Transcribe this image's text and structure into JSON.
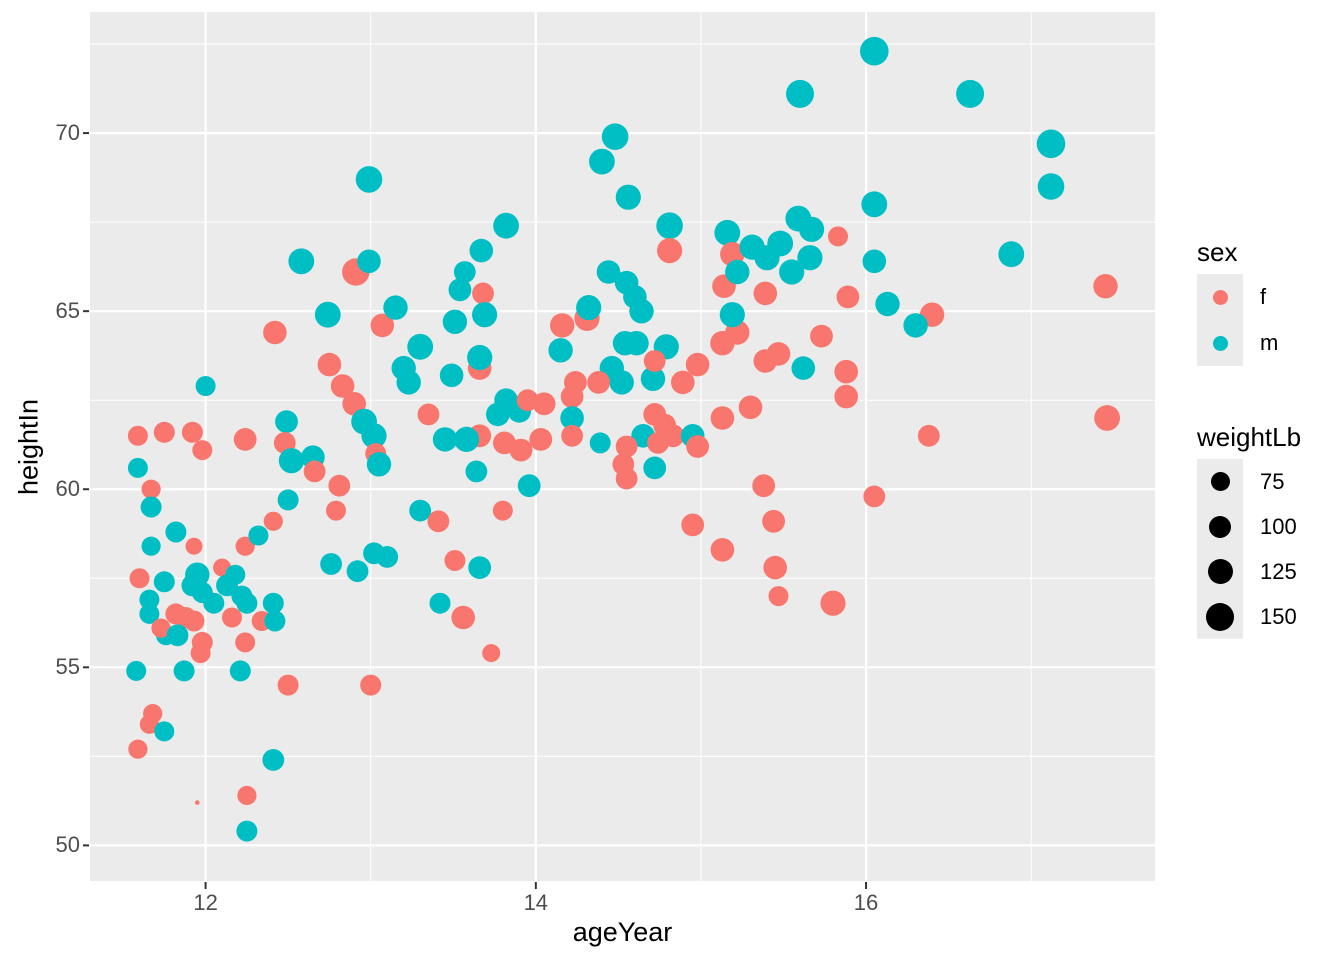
{
  "chart_data": {
    "type": "scatter",
    "title": "",
    "xlabel": "ageYear",
    "ylabel": "heightIn",
    "x_domain": [
      11.3,
      17.75
    ],
    "y_domain": [
      49.0,
      73.4
    ],
    "x_ticks": [
      "12",
      "14",
      "16"
    ],
    "x_tick_values": [
      12,
      14,
      16
    ],
    "y_ticks": [
      "50",
      "55",
      "60",
      "65",
      "70"
    ],
    "y_tick_values": [
      50,
      55,
      60,
      65,
      70
    ],
    "x_minor_values": [
      13,
      15,
      17
    ],
    "y_minor_values": [
      52.5,
      57.5,
      62.5,
      67.5,
      72.5
    ],
    "grid": true,
    "panel_bg": "#EBEBEB",
    "grid_color": "#FFFFFF",
    "tick_mark_color": "#333333",
    "tick_label_color": "#4D4D4D",
    "legend_position": "right",
    "color_legend": {
      "title": "sex",
      "entries": [
        {
          "label": "f",
          "color": "#F8766D"
        },
        {
          "label": "m",
          "color": "#00BFC4"
        }
      ],
      "key_dot_diameter": 15
    },
    "size_legend": {
      "title": "weightLb",
      "labels": [
        "75",
        "100",
        "125",
        "150"
      ],
      "values": [
        75,
        100,
        125,
        150
      ],
      "radii": [
        9.5,
        11,
        12.5,
        14
      ],
      "dot_color": "#000000"
    },
    "points_format": [
      "ageYear",
      "heightIn",
      "sex",
      "weightLb"
    ],
    "points": [
      [
        12.99,
        68.7,
        "m",
        140
      ],
      [
        12.58,
        66.4,
        "m",
        135
      ],
      [
        12.91,
        66.1,
        "f",
        145
      ],
      [
        12.99,
        66.4,
        "m",
        120
      ],
      [
        12.74,
        64.9,
        "m",
        135
      ],
      [
        13.07,
        64.6,
        "f",
        120
      ],
      [
        13.15,
        65.1,
        "m",
        125
      ],
      [
        15.6,
        71.1,
        "m",
        150
      ],
      [
        14.48,
        69.9,
        "m",
        140
      ],
      [
        14.4,
        69.2,
        "m",
        135
      ],
      [
        14.56,
        68.2,
        "m",
        130
      ],
      [
        14.81,
        67.4,
        "m",
        140
      ],
      [
        14.81,
        66.7,
        "f",
        130
      ],
      [
        13.82,
        67.4,
        "m",
        135
      ],
      [
        13.67,
        66.7,
        "m",
        120
      ],
      [
        13.57,
        66.1,
        "m",
        110
      ],
      [
        13.54,
        65.6,
        "m",
        115
      ],
      [
        13.68,
        65.5,
        "f",
        110
      ],
      [
        14.44,
        66.1,
        "m",
        120
      ],
      [
        14.55,
        65.8,
        "m",
        120
      ],
      [
        14.6,
        65.4,
        "m",
        120
      ],
      [
        14.64,
        65.0,
        "m",
        125
      ],
      [
        15.16,
        67.2,
        "m",
        135
      ],
      [
        15.19,
        66.6,
        "f",
        125
      ],
      [
        15.31,
        66.8,
        "m",
        130
      ],
      [
        15.4,
        66.5,
        "m",
        130
      ],
      [
        15.48,
        66.9,
        "m",
        135
      ],
      [
        15.55,
        66.1,
        "m",
        130
      ],
      [
        15.14,
        65.7,
        "f",
        120
      ],
      [
        15.22,
        66.1,
        "m",
        125
      ],
      [
        15.39,
        65.5,
        "f",
        120
      ],
      [
        15.59,
        67.6,
        "m",
        135
      ],
      [
        15.67,
        67.3,
        "m",
        130
      ],
      [
        15.66,
        66.5,
        "m",
        130
      ],
      [
        16.05,
        72.3,
        "m",
        155
      ],
      [
        16.63,
        71.1,
        "m",
        150
      ],
      [
        17.12,
        69.7,
        "m",
        155
      ],
      [
        17.12,
        68.5,
        "m",
        140
      ],
      [
        16.05,
        68.0,
        "m",
        135
      ],
      [
        15.83,
        67.1,
        "f",
        100
      ],
      [
        16.05,
        66.4,
        "m",
        120
      ],
      [
        16.88,
        66.6,
        "m",
        135
      ],
      [
        17.45,
        65.7,
        "f",
        125
      ],
      [
        15.89,
        65.4,
        "f",
        115
      ],
      [
        16.13,
        65.2,
        "m",
        125
      ],
      [
        16.4,
        64.9,
        "f",
        125
      ],
      [
        16.3,
        64.6,
        "m",
        125
      ],
      [
        15.73,
        64.3,
        "f",
        115
      ],
      [
        15.62,
        63.4,
        "m",
        120
      ],
      [
        15.88,
        63.3,
        "f",
        120
      ],
      [
        15.88,
        62.6,
        "f",
        120
      ],
      [
        17.46,
        62.0,
        "f",
        135
      ],
      [
        16.38,
        61.5,
        "f",
        110
      ],
      [
        16.05,
        59.8,
        "f",
        110
      ],
      [
        15.8,
        56.8,
        "f",
        130
      ],
      [
        12.42,
        64.4,
        "f",
        120
      ],
      [
        13.3,
        64.0,
        "m",
        135
      ],
      [
        13.2,
        63.4,
        "m",
        125
      ],
      [
        13.23,
        63.0,
        "m",
        125
      ],
      [
        12.0,
        62.9,
        "m",
        100
      ],
      [
        12.75,
        63.5,
        "f",
        120
      ],
      [
        12.83,
        62.9,
        "f",
        120
      ],
      [
        12.9,
        62.4,
        "f",
        120
      ],
      [
        12.49,
        61.9,
        "m",
        115
      ],
      [
        11.59,
        61.5,
        "f",
        100
      ],
      [
        11.75,
        61.6,
        "f",
        105
      ],
      [
        11.92,
        61.6,
        "f",
        105
      ],
      [
        11.98,
        61.1,
        "f",
        100
      ],
      [
        12.24,
        61.4,
        "f",
        115
      ],
      [
        12.48,
        61.3,
        "f",
        110
      ],
      [
        12.52,
        60.8,
        "m",
        130
      ],
      [
        12.65,
        60.9,
        "m",
        120
      ],
      [
        12.66,
        60.5,
        "f",
        110
      ],
      [
        12.81,
        60.1,
        "f",
        110
      ],
      [
        12.96,
        61.9,
        "m",
        135
      ],
      [
        13.02,
        61.5,
        "m",
        130
      ],
      [
        13.35,
        62.1,
        "f",
        110
      ],
      [
        13.03,
        61.0,
        "f",
        105
      ],
      [
        13.05,
        60.7,
        "m",
        125
      ],
      [
        11.59,
        60.6,
        "m",
        100
      ],
      [
        11.67,
        60.0,
        "f",
        95
      ],
      [
        11.67,
        59.5,
        "m",
        105
      ],
      [
        11.82,
        58.8,
        "m",
        105
      ],
      [
        11.67,
        58.4,
        "m",
        95
      ],
      [
        11.95,
        57.6,
        "m",
        125
      ],
      [
        11.93,
        58.4,
        "f",
        85
      ],
      [
        12.1,
        57.8,
        "f",
        90
      ],
      [
        12.18,
        57.6,
        "m",
        100
      ],
      [
        12.24,
        58.4,
        "f",
        95
      ],
      [
        12.32,
        58.7,
        "m",
        100
      ],
      [
        12.41,
        59.1,
        "f",
        95
      ],
      [
        12.79,
        59.4,
        "f",
        100
      ],
      [
        12.5,
        59.7,
        "m",
        105
      ],
      [
        11.6,
        57.5,
        "f",
        100
      ],
      [
        11.75,
        57.4,
        "m",
        105
      ],
      [
        11.92,
        57.3,
        "m",
        110
      ],
      [
        12.13,
        57.3,
        "m",
        110
      ],
      [
        12.76,
        57.9,
        "m",
        110
      ],
      [
        12.92,
        57.7,
        "m",
        110
      ],
      [
        13.02,
        58.2,
        "m",
        110
      ],
      [
        13.1,
        58.1,
        "m",
        110
      ],
      [
        13.3,
        59.4,
        "m",
        110
      ],
      [
        13.41,
        59.1,
        "f",
        110
      ],
      [
        13.69,
        64.9,
        "m",
        130
      ],
      [
        13.51,
        64.7,
        "m",
        125
      ],
      [
        13.66,
        63.4,
        "f",
        120
      ],
      [
        13.66,
        63.7,
        "m",
        130
      ],
      [
        13.49,
        63.2,
        "m",
        120
      ],
      [
        14.16,
        64.6,
        "f",
        125
      ],
      [
        14.31,
        64.8,
        "f",
        130
      ],
      [
        14.32,
        65.1,
        "m",
        130
      ],
      [
        14.15,
        63.9,
        "m",
        125
      ],
      [
        14.54,
        64.1,
        "m",
        125
      ],
      [
        14.61,
        64.1,
        "m",
        125
      ],
      [
        14.46,
        63.4,
        "m",
        125
      ],
      [
        14.52,
        63.0,
        "m",
        125
      ],
      [
        14.79,
        64.0,
        "m",
        130
      ],
      [
        14.71,
        63.1,
        "m",
        125
      ],
      [
        14.38,
        63.0,
        "f",
        115
      ],
      [
        14.24,
        63.0,
        "f",
        115
      ],
      [
        14.22,
        62.6,
        "f",
        115
      ],
      [
        14.72,
        63.6,
        "f",
        110
      ],
      [
        14.89,
        63.0,
        "f",
        120
      ],
      [
        14.98,
        63.5,
        "f",
        120
      ],
      [
        15.13,
        64.1,
        "f",
        125
      ],
      [
        15.22,
        64.4,
        "f",
        125
      ],
      [
        15.19,
        64.9,
        "m",
        130
      ],
      [
        15.39,
        63.6,
        "f",
        120
      ],
      [
        15.47,
        63.8,
        "f",
        120
      ],
      [
        13.82,
        62.5,
        "m",
        120
      ],
      [
        13.77,
        62.1,
        "m",
        120
      ],
      [
        13.9,
        62.2,
        "m",
        120
      ],
      [
        13.95,
        62.5,
        "f",
        110
      ],
      [
        14.05,
        62.4,
        "f",
        115
      ],
      [
        14.22,
        62.0,
        "m",
        120
      ],
      [
        14.22,
        61.5,
        "f",
        110
      ],
      [
        13.66,
        61.5,
        "f",
        115
      ],
      [
        13.81,
        61.3,
        "f",
        115
      ],
      [
        13.91,
        61.1,
        "f",
        115
      ],
      [
        14.03,
        61.4,
        "f",
        115
      ],
      [
        13.58,
        61.4,
        "m",
        130
      ],
      [
        13.45,
        61.4,
        "m",
        125
      ],
      [
        14.39,
        61.3,
        "m",
        105
      ],
      [
        14.65,
        61.5,
        "m",
        120
      ],
      [
        14.72,
        62.1,
        "f",
        115
      ],
      [
        14.78,
        61.8,
        "f",
        115
      ],
      [
        14.83,
        61.5,
        "f",
        115
      ],
      [
        14.74,
        61.3,
        "f",
        110
      ],
      [
        14.55,
        61.2,
        "f",
        110
      ],
      [
        14.53,
        60.7,
        "f",
        110
      ],
      [
        14.55,
        60.3,
        "f",
        110
      ],
      [
        14.72,
        60.6,
        "m",
        115
      ],
      [
        14.95,
        61.5,
        "m",
        120
      ],
      [
        14.98,
        61.2,
        "f",
        115
      ],
      [
        15.13,
        62.0,
        "f",
        120
      ],
      [
        15.3,
        62.3,
        "f",
        120
      ],
      [
        15.38,
        60.1,
        "f",
        115
      ],
      [
        14.95,
        59.0,
        "f",
        115
      ],
      [
        15.13,
        58.3,
        "f",
        120
      ],
      [
        15.44,
        59.1,
        "f",
        115
      ],
      [
        15.45,
        57.8,
        "f",
        120
      ],
      [
        13.96,
        60.1,
        "m",
        115
      ],
      [
        13.64,
        60.5,
        "m",
        110
      ],
      [
        13.8,
        59.4,
        "f",
        100
      ],
      [
        13.51,
        58.0,
        "f",
        105
      ],
      [
        13.66,
        57.8,
        "m",
        115
      ],
      [
        11.66,
        56.9,
        "m",
        100
      ],
      [
        11.66,
        56.5,
        "m",
        100
      ],
      [
        11.82,
        56.5,
        "f",
        105
      ],
      [
        11.88,
        56.4,
        "f",
        105
      ],
      [
        11.93,
        56.3,
        "f",
        105
      ],
      [
        11.76,
        55.9,
        "m",
        100
      ],
      [
        11.73,
        56.1,
        "f",
        95
      ],
      [
        11.83,
        55.9,
        "m",
        110
      ],
      [
        11.98,
        55.7,
        "f",
        105
      ],
      [
        11.97,
        55.4,
        "f",
        100
      ],
      [
        12.05,
        56.8,
        "m",
        105
      ],
      [
        11.98,
        57.1,
        "m",
        105
      ],
      [
        12.22,
        57.0,
        "m",
        105
      ],
      [
        12.25,
        56.8,
        "m",
        105
      ],
      [
        12.16,
        56.4,
        "f",
        100
      ],
      [
        12.34,
        56.3,
        "f",
        100
      ],
      [
        12.41,
        56.8,
        "m",
        105
      ],
      [
        12.42,
        56.3,
        "m",
        105
      ],
      [
        12.24,
        55.7,
        "f",
        100
      ],
      [
        11.58,
        54.9,
        "m",
        100
      ],
      [
        11.87,
        54.9,
        "m",
        105
      ],
      [
        12.21,
        54.9,
        "m",
        105
      ],
      [
        12.5,
        54.5,
        "f",
        105
      ],
      [
        13.0,
        54.5,
        "f",
        105
      ],
      [
        11.68,
        53.7,
        "f",
        95
      ],
      [
        11.66,
        53.4,
        "f",
        95
      ],
      [
        11.75,
        53.2,
        "m",
        100
      ],
      [
        11.59,
        52.7,
        "f",
        95
      ],
      [
        12.41,
        52.4,
        "m",
        110
      ],
      [
        11.95,
        51.2,
        "f",
        50
      ],
      [
        12.25,
        51.4,
        "f",
        95
      ],
      [
        12.25,
        50.4,
        "m",
        105
      ],
      [
        13.42,
        56.8,
        "m",
        105
      ],
      [
        13.56,
        56.4,
        "f",
        120
      ],
      [
        13.73,
        55.4,
        "f",
        90
      ],
      [
        15.47,
        57.0,
        "f",
        100
      ]
    ]
  }
}
